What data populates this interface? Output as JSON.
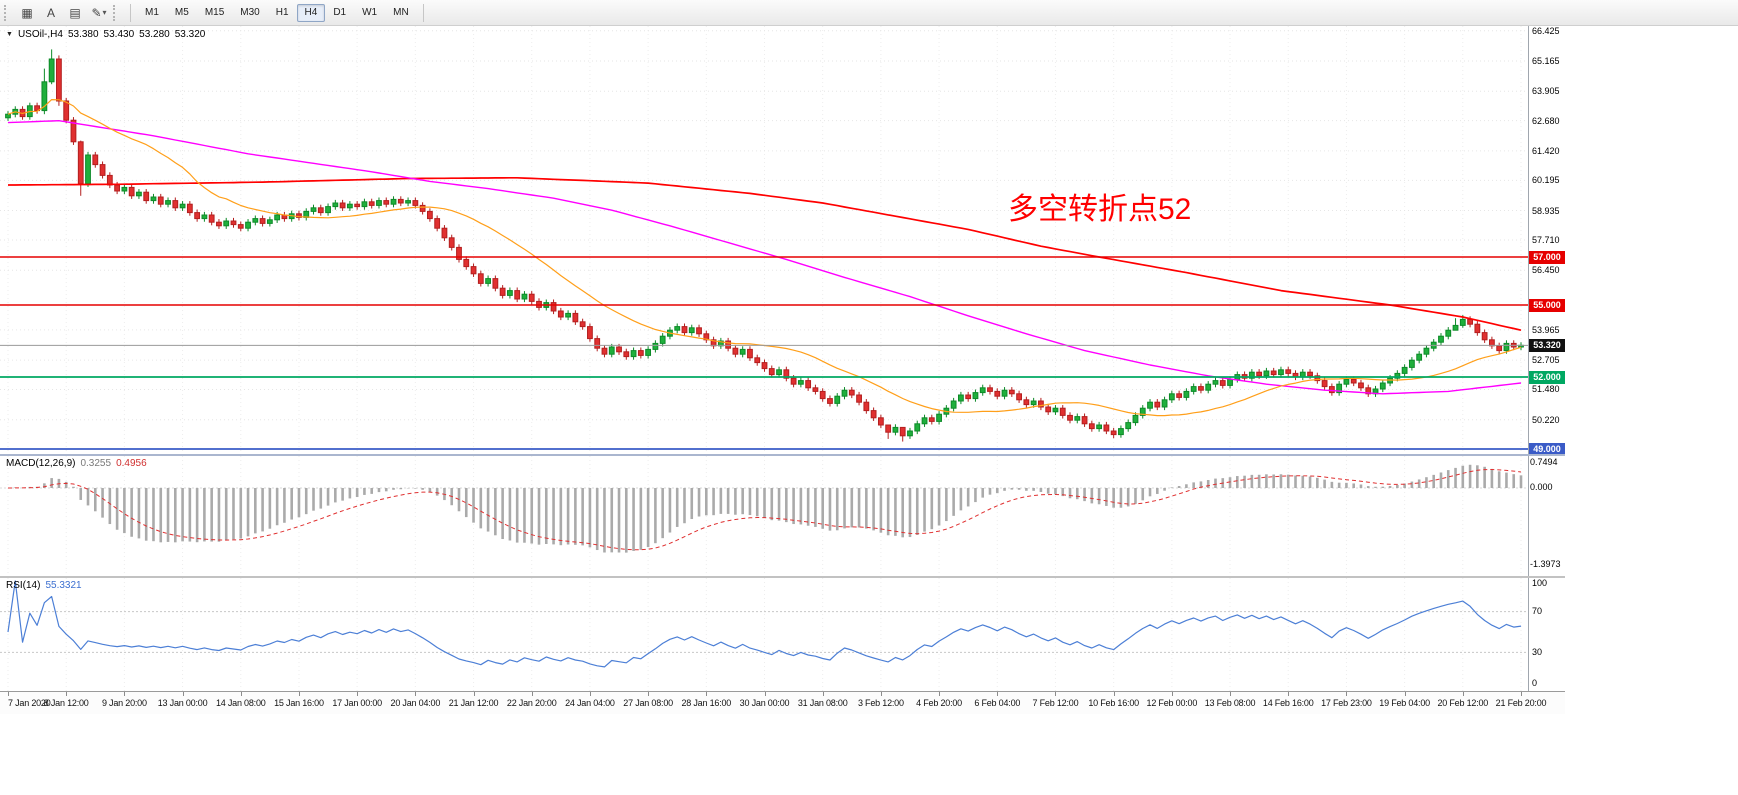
{
  "toolbar": {
    "tools": [
      {
        "name": "grid-pattern",
        "glyph": "▦"
      },
      {
        "name": "text-tool",
        "glyph": "A"
      },
      {
        "name": "object-list",
        "glyph": "▤"
      },
      {
        "name": "draw-tool",
        "glyph": "✎"
      },
      {
        "name": "draw-tool-caret",
        "glyph": "▾"
      }
    ],
    "timeframes": [
      {
        "label": "M1",
        "active": false
      },
      {
        "label": "M5",
        "active": false
      },
      {
        "label": "M15",
        "active": false
      },
      {
        "label": "M30",
        "active": false
      },
      {
        "label": "H1",
        "active": false
      },
      {
        "label": "H4",
        "active": true
      },
      {
        "label": "D1",
        "active": false
      },
      {
        "label": "W1",
        "active": false
      },
      {
        "label": "MN",
        "active": false
      }
    ]
  },
  "chart": {
    "symbol": "USOil-,H4",
    "open": "53.380",
    "high": "53.430",
    "low": "53.280",
    "close": "53.320",
    "annotation": {
      "text": "多空转折点52",
      "color": "#ff0000"
    },
    "price_scale": [
      "66.425",
      "65.165",
      "63.905",
      "62.680",
      "61.420",
      "60.195",
      "58.935",
      "57.710",
      "56.450",
      "53.965",
      "52.705",
      "51.480",
      "50.220"
    ],
    "price_tags": [
      {
        "text": "57.000",
        "price": 57.0,
        "bg": "#e60000"
      },
      {
        "text": "55.000",
        "price": 55.0,
        "bg": "#e60000"
      },
      {
        "text": "53.320",
        "price": 53.32,
        "bg": "#111111"
      },
      {
        "text": "52.000",
        "price": 52.0,
        "bg": "#00a862"
      },
      {
        "text": "49.000",
        "price": 49.0,
        "bg": "#3a5bc7"
      }
    ],
    "hlines": [
      {
        "price": 57.0,
        "color": "#e60000",
        "width": 1.6
      },
      {
        "price": 55.0,
        "color": "#e60000",
        "width": 1.6
      },
      {
        "price": 53.32,
        "color": "#9a9a9a",
        "width": 1
      },
      {
        "price": 52.0,
        "color": "#00a862",
        "width": 1.8
      },
      {
        "price": 49.0,
        "color": "#3a5bc7",
        "width": 1.8
      }
    ],
    "time_labels": [
      "7 Jan 2020",
      "8 Jan 12:00",
      "9 Jan 20:00",
      "13 Jan 00:00",
      "14 Jan 08:00",
      "15 Jan 16:00",
      "17 Jan 00:00",
      "20 Jan 04:00",
      "21 Jan 12:00",
      "22 Jan 20:00",
      "24 Jan 04:00",
      "27 Jan 08:00",
      "28 Jan 16:00",
      "30 Jan 00:00",
      "31 Jan 08:00",
      "3 Feb 12:00",
      "4 Feb 20:00",
      "6 Feb 04:00",
      "7 Feb 12:00",
      "10 Feb 16:00",
      "12 Feb 00:00",
      "13 Feb 08:00",
      "14 Feb 16:00",
      "17 Feb 23:00",
      "19 Feb 04:00",
      "20 Feb 12:00",
      "21 Feb 20:00"
    ]
  },
  "chart_data": {
    "type": "candlestick",
    "symbol": "USOil-",
    "timeframe": "H4",
    "first_open": 62.8,
    "default_wick": 0.13,
    "closes": [
      62.95,
      63.15,
      62.85,
      63.3,
      63.1,
      64.3,
      65.25,
      63.5,
      62.7,
      61.8,
      60.05,
      61.25,
      60.85,
      60.4,
      60.0,
      59.75,
      59.9,
      59.55,
      59.7,
      59.35,
      59.5,
      59.2,
      59.35,
      59.05,
      59.2,
      58.85,
      58.6,
      58.75,
      58.45,
      58.3,
      58.5,
      58.35,
      58.2,
      58.45,
      58.6,
      58.4,
      58.55,
      58.75,
      58.6,
      58.8,
      58.65,
      58.9,
      59.05,
      58.85,
      59.1,
      59.25,
      59.05,
      59.2,
      59.1,
      59.3,
      59.15,
      59.35,
      59.2,
      59.4,
      59.25,
      59.35,
      59.15,
      58.9,
      58.6,
      58.2,
      57.8,
      57.4,
      56.9,
      56.6,
      56.3,
      55.9,
      56.1,
      55.7,
      55.4,
      55.6,
      55.25,
      55.45,
      55.15,
      54.9,
      55.1,
      54.75,
      54.5,
      54.65,
      54.3,
      54.1,
      53.6,
      53.2,
      52.95,
      53.25,
      53.05,
      52.85,
      53.1,
      52.9,
      53.15,
      53.4,
      53.7,
      53.95,
      54.1,
      53.85,
      54.05,
      53.8,
      53.55,
      53.3,
      53.5,
      53.2,
      52.95,
      53.15,
      52.8,
      52.6,
      52.35,
      52.1,
      52.3,
      51.95,
      51.7,
      51.85,
      51.55,
      51.4,
      51.1,
      50.9,
      51.2,
      51.45,
      51.25,
      50.95,
      50.6,
      50.3,
      50.0,
      49.7,
      49.9,
      49.55,
      49.75,
      50.05,
      50.3,
      50.15,
      50.45,
      50.7,
      51.0,
      51.25,
      51.1,
      51.35,
      51.55,
      51.4,
      51.2,
      51.45,
      51.3,
      51.05,
      50.85,
      51.0,
      50.75,
      50.55,
      50.7,
      50.4,
      50.2,
      50.35,
      50.05,
      49.85,
      50.0,
      49.75,
      49.6,
      49.85,
      50.1,
      50.4,
      50.7,
      50.95,
      50.75,
      51.05,
      51.3,
      51.15,
      51.4,
      51.6,
      51.45,
      51.7,
      51.85,
      51.65,
      51.9,
      52.1,
      51.95,
      52.2,
      52.05,
      52.25,
      52.1,
      52.3,
      52.15,
      52.0,
      52.2,
      52.05,
      51.85,
      51.6,
      51.35,
      51.7,
      51.9,
      51.75,
      51.55,
      51.3,
      51.5,
      51.75,
      51.95,
      52.15,
      52.4,
      52.7,
      52.95,
      53.2,
      53.45,
      53.7,
      53.95,
      54.15,
      54.4,
      54.2,
      53.85,
      53.55,
      53.3,
      53.1,
      53.4,
      53.25,
      53.32
    ],
    "wick_overrides": {
      "5": [
        64.85,
        62.95
      ],
      "6": [
        65.65,
        64.2
      ],
      "7": [
        65.4,
        63.3
      ],
      "10": [
        61.85,
        59.55
      ],
      "121": [
        49.95,
        49.42
      ],
      "123": [
        49.88,
        49.31
      ],
      "152": [
        49.88,
        49.45
      ],
      "199": [
        54.45,
        53.95
      ],
      "200": [
        54.58,
        54.05
      ]
    },
    "colors": {
      "up": "#1faf3c",
      "up_border": "#0d8a28",
      "down": "#e03030",
      "down_border": "#b31f1f",
      "ma_fast": "#ff9f1a",
      "ma_mid": "#ff00ff",
      "ma_slow": "#ff0000"
    },
    "ma_fast_period": 20,
    "ma_mid_anchors": [
      [
        0,
        62.6
      ],
      [
        7,
        62.68
      ],
      [
        20,
        62.05
      ],
      [
        33,
        61.3
      ],
      [
        50,
        60.55
      ],
      [
        58,
        60.15
      ],
      [
        66,
        59.85
      ],
      [
        75,
        59.45
      ],
      [
        83,
        58.95
      ],
      [
        91,
        58.3
      ],
      [
        99,
        57.6
      ],
      [
        107,
        56.9
      ],
      [
        115,
        56.15
      ],
      [
        124,
        55.35
      ],
      [
        132,
        54.55
      ],
      [
        140,
        53.8
      ],
      [
        148,
        53.1
      ],
      [
        157,
        52.5
      ],
      [
        165,
        52.05
      ],
      [
        173,
        51.7
      ],
      [
        181,
        51.45
      ],
      [
        189,
        51.3
      ],
      [
        198,
        51.4
      ],
      [
        208,
        51.75
      ]
    ],
    "ma_slow_anchors": [
      [
        0,
        60.0
      ],
      [
        15,
        60.03
      ],
      [
        35,
        60.12
      ],
      [
        55,
        60.27
      ],
      [
        70,
        60.3
      ],
      [
        88,
        60.08
      ],
      [
        102,
        59.65
      ],
      [
        112,
        59.25
      ],
      [
        122,
        58.7
      ],
      [
        132,
        58.15
      ],
      [
        142,
        57.45
      ],
      [
        150,
        57.0
      ],
      [
        162,
        56.35
      ],
      [
        175,
        55.6
      ],
      [
        190,
        55.0
      ],
      [
        200,
        54.5
      ],
      [
        208,
        53.95
      ]
    ]
  },
  "macd": {
    "label": "MACD(12,26,9)",
    "value_main": "0.3255",
    "value_signal": "0.4956",
    "fast": 12,
    "slow": 26,
    "signal": 9,
    "scale": {
      "top": "0.7494",
      "zero": "0.000",
      "bottom": "-1.3973"
    },
    "colors": {
      "histogram": "#aaaaaa",
      "signal": "#e03030"
    }
  },
  "rsi": {
    "label": "RSI(14)",
    "value": "55.3321",
    "period": 14,
    "scale": [
      "100",
      "70",
      "30",
      "0"
    ],
    "levels": [
      70,
      30
    ],
    "color": "#4c7fd6"
  }
}
